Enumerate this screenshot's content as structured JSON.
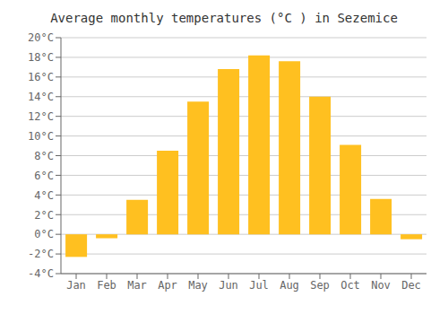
{
  "chart_data": {
    "type": "bar",
    "title": "Average monthly temperatures (°C ) in Sezemice",
    "categories": [
      "Jan",
      "Feb",
      "Mar",
      "Apr",
      "May",
      "Jun",
      "Jul",
      "Aug",
      "Sep",
      "Oct",
      "Nov",
      "Dec"
    ],
    "values": [
      -2.3,
      -0.4,
      3.5,
      8.5,
      13.5,
      16.8,
      18.2,
      17.6,
      14.0,
      9.1,
      3.6,
      -0.5
    ],
    "color": "#FFC020",
    "ylim": [
      -4,
      20
    ],
    "yticks": [
      {
        "value": -4,
        "label": "-4°C"
      },
      {
        "value": -2,
        "label": "-2°C"
      },
      {
        "value": 0,
        "label": "0°C"
      },
      {
        "value": 2,
        "label": "2°C"
      },
      {
        "value": 4,
        "label": "4°C"
      },
      {
        "value": 6,
        "label": "6°C"
      },
      {
        "value": 8,
        "label": "8°C"
      },
      {
        "value": 10,
        "label": "10°C"
      },
      {
        "value": 12,
        "label": "12°C"
      },
      {
        "value": 14,
        "label": "14°C"
      },
      {
        "value": 16,
        "label": "16°C"
      },
      {
        "value": 18,
        "label": "18°C"
      },
      {
        "value": 20,
        "label": "20°C"
      }
    ],
    "grid": true
  }
}
